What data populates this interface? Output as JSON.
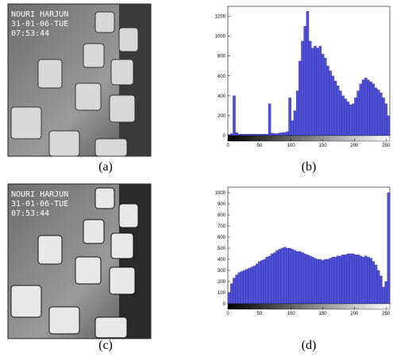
{
  "images": [
    {
      "caption": "(a)",
      "overlay": [
        "NOURI HARJUN",
        "31-01-06-TUE",
        "07:53:44"
      ]
    },
    {
      "caption": "(c)",
      "overlay": [
        "NOURI HARJUN",
        "31-01-06-TUE",
        "07:53:44"
      ]
    }
  ],
  "chart_data": [
    {
      "type": "histogram",
      "caption": "(b)",
      "color": "#5050d8",
      "bins": [
        0,
        4,
        8,
        12,
        16,
        20,
        24,
        28,
        32,
        36,
        40,
        44,
        48,
        52,
        56,
        60,
        64,
        68,
        72,
        76,
        80,
        84,
        88,
        92,
        96,
        100,
        104,
        108,
        112,
        116,
        120,
        124,
        128,
        132,
        136,
        140,
        144,
        148,
        152,
        156,
        160,
        164,
        168,
        172,
        176,
        180,
        184,
        188,
        192,
        196,
        200,
        204,
        208,
        212,
        216,
        220,
        224,
        228,
        232,
        236,
        240,
        244,
        248,
        252,
        256
      ],
      "values": [
        10,
        20,
        400,
        30,
        15,
        15,
        15,
        15,
        15,
        15,
        15,
        15,
        15,
        15,
        15,
        15,
        320,
        25,
        20,
        20,
        25,
        30,
        30,
        40,
        380,
        150,
        250,
        450,
        750,
        950,
        1100,
        1250,
        950,
        880,
        900,
        880,
        900,
        820,
        780,
        700,
        650,
        600,
        550,
        500,
        450,
        400,
        370,
        340,
        310,
        320,
        380,
        450,
        520,
        560,
        580,
        560,
        540,
        520,
        480,
        460,
        430,
        380,
        320,
        200
      ],
      "xlim": [
        0,
        256
      ],
      "xticks": [
        0,
        50,
        100,
        150,
        200,
        250
      ],
      "ylim": [
        0,
        1300
      ],
      "yticks": [
        0,
        200,
        400,
        600,
        800,
        1000,
        1200
      ]
    },
    {
      "type": "histogram",
      "caption": "(d)",
      "color": "#5050d8",
      "bins": [
        0,
        4,
        8,
        12,
        16,
        20,
        24,
        28,
        32,
        36,
        40,
        44,
        48,
        52,
        56,
        60,
        64,
        68,
        72,
        76,
        80,
        84,
        88,
        92,
        96,
        100,
        104,
        108,
        112,
        116,
        120,
        124,
        128,
        132,
        136,
        140,
        144,
        148,
        152,
        156,
        160,
        164,
        168,
        172,
        176,
        180,
        184,
        188,
        192,
        196,
        200,
        204,
        208,
        212,
        216,
        220,
        224,
        228,
        232,
        236,
        240,
        244,
        248,
        252,
        256
      ],
      "values": [
        100,
        180,
        230,
        260,
        280,
        290,
        300,
        310,
        320,
        330,
        340,
        360,
        380,
        390,
        400,
        420,
        430,
        450,
        460,
        480,
        490,
        500,
        510,
        500,
        500,
        490,
        480,
        470,
        470,
        460,
        450,
        440,
        430,
        420,
        410,
        400,
        400,
        390,
        400,
        400,
        410,
        420,
        420,
        430,
        430,
        440,
        440,
        450,
        450,
        450,
        440,
        440,
        430,
        420,
        430,
        420,
        410,
        380,
        350,
        300,
        250,
        150,
        200,
        1000
      ],
      "xlim": [
        0,
        256
      ],
      "xticks": [
        0,
        50,
        100,
        150,
        200,
        250
      ],
      "ylim": [
        0,
        1050
      ],
      "yticks": [
        0,
        100,
        200,
        300,
        400,
        500,
        600,
        700,
        800,
        900,
        1000
      ]
    }
  ]
}
